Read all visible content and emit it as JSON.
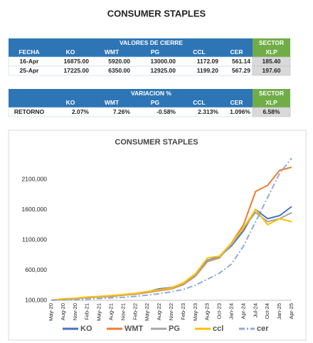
{
  "page_title": "CONSUMER STAPLES",
  "tables": [
    {
      "header": "VALORES DE CIERRE",
      "sector": "SECTOR",
      "columns": [
        "FECHA",
        "KO",
        "WMT",
        "PG",
        "CCL",
        "CER",
        "XLP"
      ],
      "rows": [
        [
          "16-Apr",
          "16875.00",
          "5920.00",
          "13000.00",
          "1172.09",
          "561.14",
          "185.40"
        ],
        [
          "25-Apr",
          "17225.00",
          "6350.00",
          "12925.00",
          "1199.20",
          "567.29",
          "197.60"
        ]
      ]
    },
    {
      "header": "VARIACION %",
      "sector": "SECTOR",
      "columns": [
        "KO",
        "WMT",
        "PG",
        "CCL",
        "CER",
        "XLP"
      ],
      "rows": [
        [
          "RETORNO",
          "2.07%",
          "7.26%",
          "-0.58%",
          "2.313%",
          "1.096%",
          "6.58%"
        ]
      ]
    }
  ],
  "chart_data": {
    "type": "line",
    "title": "CONSUMER STAPLES",
    "categories": [
      "May-20",
      "Aug-20",
      "Nov-20",
      "Feb-21",
      "May-21",
      "Aug-21",
      "Nov-21",
      "Feb-22",
      "May-22",
      "Aug-22",
      "Nov-22",
      "Feb-23",
      "May-23",
      "Aug-23",
      "Oct-23",
      "Jan-24",
      "Apr-24",
      "Jul-24",
      "Oct-24",
      "Jan-25",
      "Apr-25"
    ],
    "series": [
      {
        "name": "KO",
        "color": "#4472c4",
        "values": [
          100000,
          120000,
          130000,
          150000,
          160000,
          175000,
          190000,
          210000,
          240000,
          290000,
          310000,
          380000,
          520000,
          760000,
          820000,
          1000000,
          1250000,
          1600000,
          1450000,
          1500000,
          1650000
        ]
      },
      {
        "name": "WMT",
        "color": "#ed7d31",
        "values": [
          100000,
          115000,
          125000,
          145000,
          155000,
          165000,
          185000,
          200000,
          230000,
          260000,
          290000,
          360000,
          500000,
          740000,
          800000,
          1050000,
          1350000,
          1900000,
          2000000,
          2250000,
          2300000
        ]
      },
      {
        "name": "PG",
        "color": "#a5a5a5",
        "values": [
          100000,
          118000,
          128000,
          148000,
          158000,
          170000,
          188000,
          205000,
          235000,
          270000,
          300000,
          370000,
          510000,
          750000,
          810000,
          1020000,
          1300000,
          1550000,
          1400000,
          1450000,
          1550000
        ]
      },
      {
        "name": "ccl",
        "color": "#ffc000",
        "values": [
          100000,
          125000,
          135000,
          155000,
          165000,
          180000,
          195000,
          215000,
          245000,
          275000,
          305000,
          390000,
          540000,
          800000,
          830000,
          1050000,
          1300000,
          1600000,
          1350000,
          1450000,
          1400000
        ]
      },
      {
        "name": "cer",
        "color": "#8faadc",
        "style": "dashdot",
        "values": [
          100000,
          105000,
          110000,
          120000,
          130000,
          140000,
          150000,
          165000,
          185000,
          210000,
          240000,
          280000,
          350000,
          450000,
          550000,
          700000,
          1000000,
          1400000,
          1800000,
          2200000,
          2450000
        ]
      }
    ],
    "ylim": [
      100000,
      2500000
    ],
    "yticks": [
      {
        "value": 100000,
        "label": "100,000"
      },
      {
        "value": 600000,
        "label": "600,000"
      },
      {
        "value": 1100000,
        "label": "1100,000"
      },
      {
        "value": 1600000,
        "label": "1600,000"
      },
      {
        "value": 2100000,
        "label": "2100,000"
      }
    ],
    "grid": false,
    "legend": "bottom"
  }
}
